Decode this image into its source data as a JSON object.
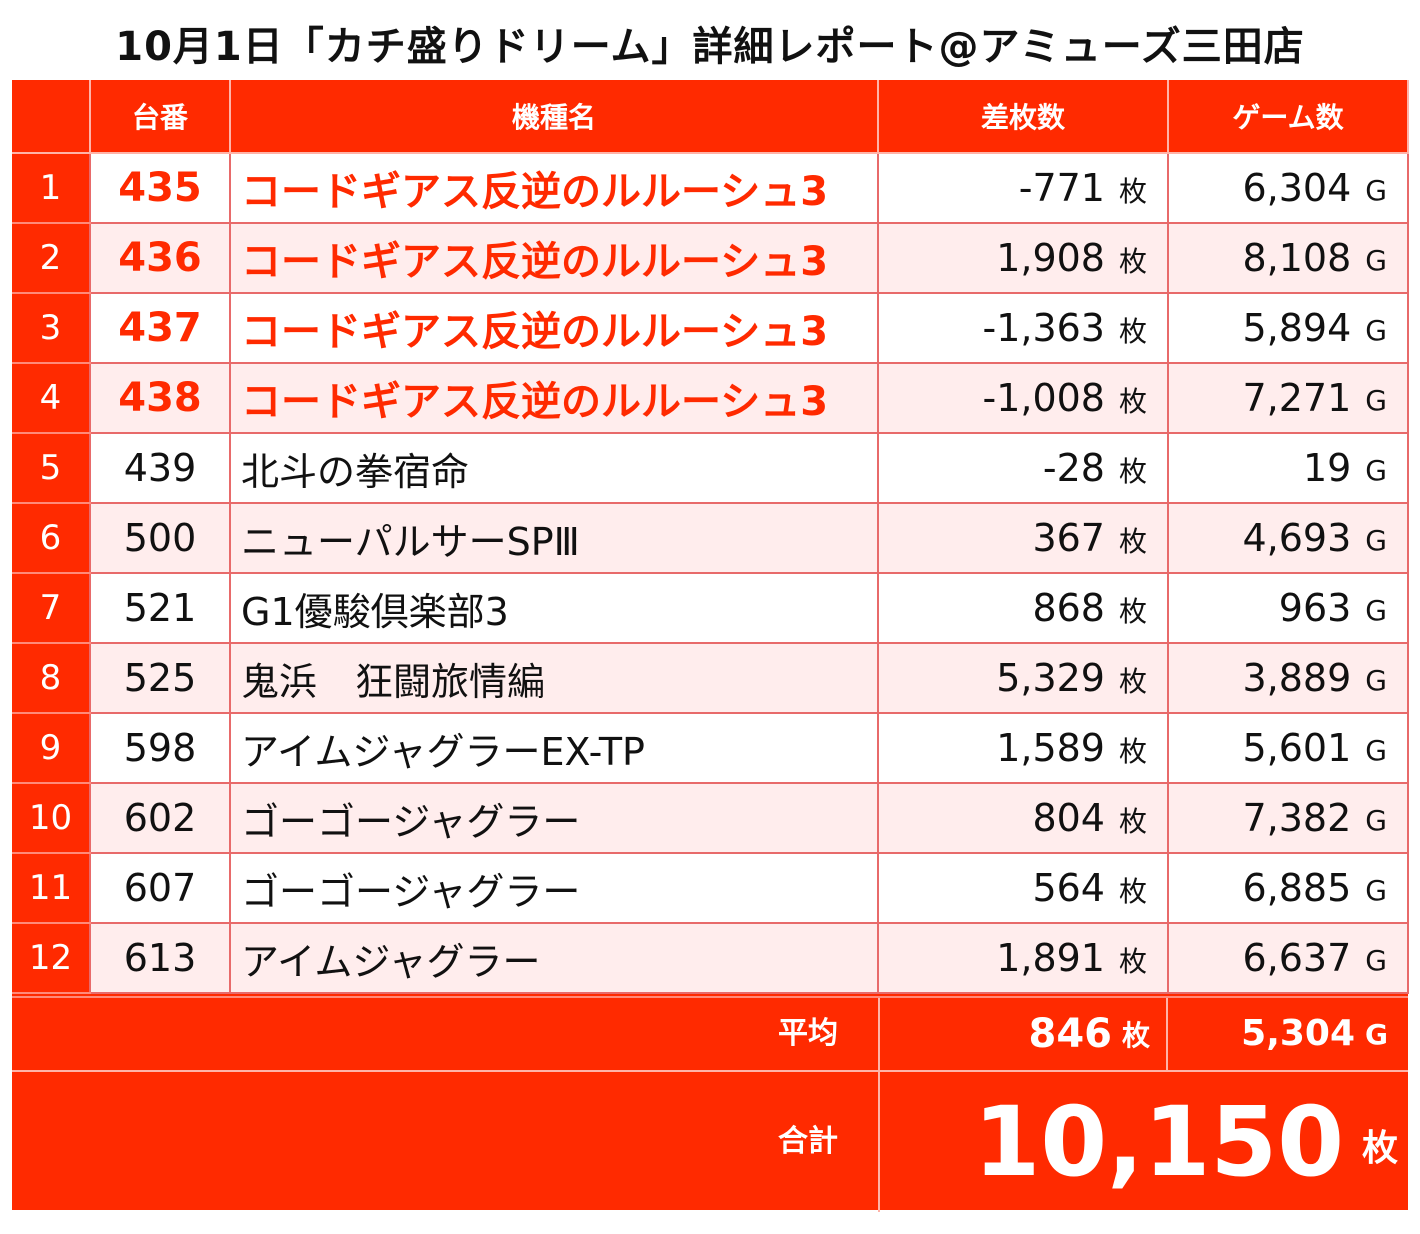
{
  "title": "10月1日「カチ盛りドリーム」詳細レポート@アミューズ三田店",
  "headers": {
    "blank": "",
    "number": "台番",
    "model": "機種名",
    "diff": "差枚数",
    "games": "ゲーム数"
  },
  "units": {
    "coins": "枚",
    "games": "G"
  },
  "colors": {
    "accent": "#ff2a00",
    "row_alt": "#ffeded",
    "border": "#e86a6a"
  },
  "rows": [
    {
      "rank": "1",
      "number": "435",
      "model": "コードギアス反逆のルルーシュ3",
      "diff": "-771",
      "games": "6,304",
      "highlight": true
    },
    {
      "rank": "2",
      "number": "436",
      "model": "コードギアス反逆のルルーシュ3",
      "diff": "1,908",
      "games": "8,108",
      "highlight": true
    },
    {
      "rank": "3",
      "number": "437",
      "model": "コードギアス反逆のルルーシュ3",
      "diff": "-1,363",
      "games": "5,894",
      "highlight": true
    },
    {
      "rank": "4",
      "number": "438",
      "model": "コードギアス反逆のルルーシュ3",
      "diff": "-1,008",
      "games": "7,271",
      "highlight": true
    },
    {
      "rank": "5",
      "number": "439",
      "model": "北斗の拳宿命",
      "diff": "-28",
      "games": "19",
      "highlight": false
    },
    {
      "rank": "6",
      "number": "500",
      "model": "ニューパルサーSPⅢ",
      "diff": "367",
      "games": "4,693",
      "highlight": false
    },
    {
      "rank": "7",
      "number": "521",
      "model": "G1優駿倶楽部3",
      "diff": "868",
      "games": "963",
      "highlight": false
    },
    {
      "rank": "8",
      "number": "525",
      "model": "鬼浜　狂闘旅情編",
      "diff": "5,329",
      "games": "3,889",
      "highlight": false
    },
    {
      "rank": "9",
      "number": "598",
      "model": "アイムジャグラーEX-TP",
      "diff": "1,589",
      "games": "5,601",
      "highlight": false
    },
    {
      "rank": "10",
      "number": "602",
      "model": "ゴーゴージャグラー",
      "diff": "804",
      "games": "7,382",
      "highlight": false
    },
    {
      "rank": "11",
      "number": "607",
      "model": "ゴーゴージャグラー",
      "diff": "564",
      "games": "6,885",
      "highlight": false
    },
    {
      "rank": "12",
      "number": "613",
      "model": "アイムジャグラー",
      "diff": "1,891",
      "games": "6,637",
      "highlight": false
    }
  ],
  "average": {
    "label": "平均",
    "diff": "846",
    "games": "5,304"
  },
  "total": {
    "label": "合計",
    "diff": "10,150"
  }
}
